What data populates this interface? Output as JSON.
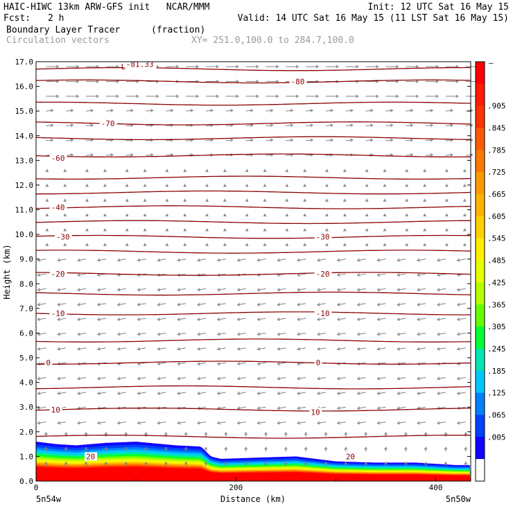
{
  "header": {
    "model_line": "HAIC-HIWC 13km ARW-GFS init   NCAR/MMM",
    "init_line": "Init: 12 UTC Sat 16 May 15",
    "fcst_label": "Fcst:",
    "fcst_value": "2 h",
    "valid_line": "Valid: 14 UTC Sat 16 May 15 (11 LST Sat 16 May 15)",
    "field_name": "Boundary Layer Tracer",
    "field_units": "(fraction)",
    "vector_label": "Circulation vectors",
    "xy_label": "XY= 251.0,100.0 to 284.7,100.0"
  },
  "chart_data": {
    "type": "heatmap",
    "xlabel": "Distance (km)",
    "ylabel": "Height (km)",
    "xlim": [
      0,
      435
    ],
    "ylim": [
      0,
      17
    ],
    "x_ticks": [
      "0",
      "200",
      "400"
    ],
    "y_ticks": [
      "0.0",
      "1.0",
      "2.0",
      "3.0",
      "4.0",
      "5.0",
      "6.0",
      "7.0",
      "8.0",
      "9.0",
      "10.0",
      "11.0",
      "12.0",
      "13.0",
      "14.0",
      "15.0",
      "16.0",
      "17.0"
    ],
    "x_end_labels": {
      "left": "5n54w",
      "right": "5n50w"
    },
    "tracer_top_profile": {
      "x": [
        0,
        20,
        40,
        70,
        100,
        140,
        165,
        175,
        185,
        220,
        260,
        300,
        340,
        380,
        420,
        435
      ],
      "top": [
        1.6,
        1.5,
        1.45,
        1.55,
        1.6,
        1.45,
        1.4,
        1.0,
        0.9,
        0.95,
        1.0,
        0.8,
        0.75,
        0.75,
        0.65,
        0.65
      ]
    },
    "temperature_contours": [
      {
        "label": "-81.33",
        "y": 16.9
      },
      {
        "label": "-80",
        "y": 16.2
      },
      {
        "label": "-70",
        "y": 14.5
      },
      {
        "label": "-60",
        "y": 13.1
      },
      {
        "label": "-40",
        "y": 11.1
      },
      {
        "label": "-30",
        "y": 9.9
      },
      {
        "label": "-30",
        "y": 9.9
      },
      {
        "label": "-20",
        "y": 8.4
      },
      {
        "label": "-20",
        "y": 8.4
      },
      {
        "label": "-10",
        "y": 6.8
      },
      {
        "label": "-10",
        "y": 6.8
      },
      {
        "label": "0",
        "y": 4.8
      },
      {
        "label": "0",
        "y": 4.8
      },
      {
        "label": "10",
        "y": 2.9
      },
      {
        "label": "10",
        "y": 2.8
      },
      {
        "label": "20",
        "y": 1.0
      },
      {
        "label": "20",
        "y": 1.0
      }
    ],
    "low_marker": "L",
    "colorbar": {
      "labels": [
        ".905",
        ".845",
        ".785",
        ".725",
        ".665",
        ".605",
        ".545",
        ".485",
        ".425",
        ".365",
        ".305",
        ".245",
        ".185",
        ".125",
        ".065",
        ".005"
      ],
      "colors": [
        "#ff0000",
        "#ff1a00",
        "#ff3300",
        "#ff5a00",
        "#ff7a00",
        "#ff9900",
        "#ffb300",
        "#ffd000",
        "#ffee00",
        "#e6ff00",
        "#b3ff00",
        "#66ff00",
        "#00ff33",
        "#00e6b3",
        "#00c8ff",
        "#0080ff",
        "#0040ff",
        "#1400ff",
        "#ffffff"
      ]
    }
  }
}
